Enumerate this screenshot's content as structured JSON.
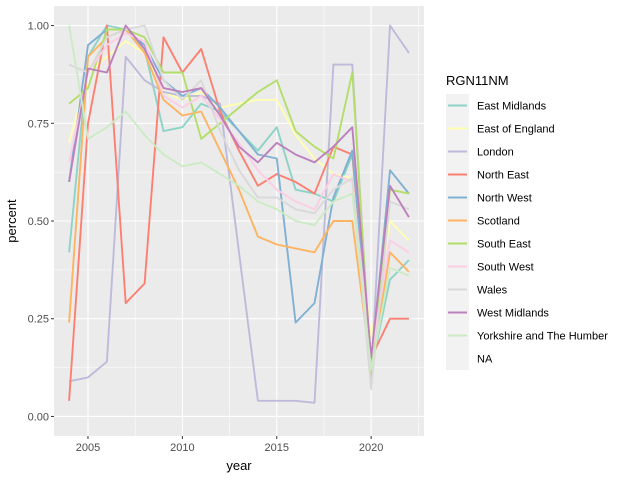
{
  "chart_data": {
    "type": "line",
    "xlabel": "year",
    "ylabel": "percent",
    "xlim": [
      2003.2,
      2022.8
    ],
    "ylim": [
      -0.05,
      1.05
    ],
    "x_ticks": [
      2005,
      2010,
      2015,
      2020
    ],
    "y_ticks": [
      0.0,
      0.25,
      0.5,
      0.75,
      1.0
    ],
    "y_tick_labels": [
      "0.00",
      "0.25",
      "0.50",
      "0.75",
      "1.00"
    ],
    "grid": true,
    "background": "#EBEBEB",
    "legend_title": "RGN11NM",
    "legend_position": "right",
    "series": [
      {
        "name": "East Midlands",
        "color": "#8DD3C7",
        "x": [
          2004,
          2005,
          2006,
          2007,
          2008,
          2009,
          2010,
          2011,
          2012,
          2013,
          2014,
          2015,
          2016,
          2017,
          2018,
          2019,
          2020,
          2021,
          2022
        ],
        "y": [
          0.42,
          0.92,
          1.0,
          0.99,
          0.94,
          0.73,
          0.74,
          0.8,
          0.78,
          0.73,
          0.68,
          0.74,
          0.58,
          0.57,
          0.55,
          0.67,
          0.12,
          0.35,
          0.4
        ]
      },
      {
        "name": "East of England",
        "color": "#FFFFB3",
        "x": [
          2004,
          2005,
          2006,
          2007,
          2008,
          2009,
          2010,
          2011,
          2012,
          2013,
          2014,
          2015,
          2016,
          2017,
          2018,
          2019,
          2020,
          2021,
          2022
        ],
        "y": [
          0.7,
          0.88,
          0.92,
          0.96,
          0.93,
          0.83,
          0.81,
          0.83,
          0.79,
          0.8,
          0.81,
          0.81,
          0.72,
          0.66,
          0.62,
          0.61,
          0.2,
          0.5,
          0.45
        ]
      },
      {
        "name": "London",
        "color": "#BEBADA",
        "x": [
          2004,
          2005,
          2006,
          2007,
          2008,
          2009,
          2010,
          2011,
          2012,
          2013,
          2014,
          2015,
          2016,
          2017,
          2018,
          2019,
          2020,
          2021,
          2022
        ],
        "y": [
          0.09,
          0.1,
          0.14,
          0.92,
          0.86,
          0.83,
          0.82,
          0.82,
          0.8,
          0.42,
          0.04,
          0.04,
          0.04,
          0.035,
          0.9,
          0.9,
          0.1,
          1.0,
          0.93
        ]
      },
      {
        "name": "North East",
        "color": "#FB8072",
        "x": [
          2004,
          2005,
          2006,
          2007,
          2008,
          2009,
          2010,
          2011,
          2012,
          2013,
          2014,
          2015,
          2016,
          2017,
          2018,
          2019,
          2020,
          2021,
          2022
        ],
        "y": [
          0.04,
          0.75,
          1.0,
          0.29,
          0.34,
          0.97,
          0.88,
          0.94,
          0.78,
          0.68,
          0.59,
          0.62,
          0.6,
          0.57,
          0.69,
          0.67,
          0.15,
          0.25,
          0.25
        ]
      },
      {
        "name": "North West",
        "color": "#80B1D3",
        "x": [
          2004,
          2005,
          2006,
          2007,
          2008,
          2009,
          2010,
          2011,
          2012,
          2013,
          2014,
          2015,
          2016,
          2017,
          2018,
          2019,
          2020,
          2021,
          2022
        ],
        "y": [
          0.6,
          0.95,
          0.99,
          0.99,
          0.95,
          0.86,
          0.82,
          0.84,
          0.79,
          0.73,
          0.67,
          0.66,
          0.24,
          0.29,
          0.56,
          0.68,
          0.13,
          0.63,
          0.57
        ]
      },
      {
        "name": "Scotland",
        "color": "#FDB462",
        "x": [
          2004,
          2005,
          2006,
          2007,
          2008,
          2009,
          2010,
          2011,
          2012,
          2013,
          2014,
          2015,
          2016,
          2017,
          2018,
          2019,
          2020,
          2021,
          2022
        ],
        "y": [
          0.24,
          0.92,
          0.97,
          0.99,
          0.93,
          0.81,
          0.77,
          0.78,
          0.68,
          0.58,
          0.46,
          0.44,
          0.43,
          0.42,
          0.5,
          0.5,
          0.12,
          0.42,
          0.37
        ]
      },
      {
        "name": "South East",
        "color": "#B3DE69",
        "x": [
          2004,
          2005,
          2006,
          2007,
          2008,
          2009,
          2010,
          2011,
          2012,
          2013,
          2014,
          2015,
          2016,
          2017,
          2018,
          2019,
          2020,
          2021,
          2022
        ],
        "y": [
          0.8,
          0.84,
          0.99,
          0.99,
          0.97,
          0.88,
          0.88,
          0.71,
          0.75,
          0.79,
          0.83,
          0.86,
          0.73,
          0.69,
          0.66,
          0.88,
          0.11,
          0.58,
          0.57
        ]
      },
      {
        "name": "South West",
        "color": "#FCCDE5",
        "x": [
          2004,
          2005,
          2006,
          2007,
          2008,
          2009,
          2010,
          2011,
          2012,
          2013,
          2014,
          2015,
          2016,
          2017,
          2018,
          2019,
          2020,
          2021,
          2022
        ],
        "y": [
          0.65,
          0.88,
          0.95,
          0.98,
          0.96,
          0.82,
          0.79,
          0.82,
          0.76,
          0.7,
          0.63,
          0.58,
          0.55,
          0.53,
          0.62,
          0.6,
          0.15,
          0.45,
          0.42
        ]
      },
      {
        "name": "Wales",
        "color": "#D9D9D9",
        "x": [
          2004,
          2005,
          2006,
          2007,
          2008,
          2009,
          2010,
          2011,
          2012,
          2013,
          2014,
          2015,
          2016,
          2017,
          2018,
          2019,
          2020,
          2021,
          2022
        ],
        "y": [
          0.9,
          0.88,
          0.97,
          0.99,
          1.0,
          0.86,
          0.81,
          0.86,
          0.73,
          0.63,
          0.56,
          0.56,
          0.53,
          0.52,
          0.58,
          0.61,
          0.07,
          0.55,
          0.53
        ]
      },
      {
        "name": "West Midlands",
        "color": "#BC80BD",
        "x": [
          2004,
          2005,
          2006,
          2007,
          2008,
          2009,
          2010,
          2011,
          2012,
          2013,
          2014,
          2015,
          2016,
          2017,
          2018,
          2019,
          2020,
          2021,
          2022
        ],
        "y": [
          0.6,
          0.89,
          0.88,
          1.0,
          0.94,
          0.84,
          0.83,
          0.84,
          0.77,
          0.69,
          0.65,
          0.7,
          0.67,
          0.65,
          0.69,
          0.74,
          0.15,
          0.59,
          0.51
        ]
      },
      {
        "name": "Yorkshire and The Humber",
        "color": "#CCEBC5",
        "x": [
          2004,
          2005,
          2006,
          2007,
          2008,
          2009,
          2010,
          2011,
          2012,
          2013,
          2014,
          2015,
          2016,
          2017,
          2018,
          2019,
          2020,
          2021,
          2022
        ],
        "y": [
          1.0,
          0.71,
          0.74,
          0.78,
          0.72,
          0.67,
          0.64,
          0.65,
          0.62,
          0.59,
          0.55,
          0.53,
          0.5,
          0.49,
          0.55,
          0.57,
          0.12,
          0.38,
          0.36
        ]
      },
      {
        "name": "NA",
        "color": "#F0F0F0",
        "x": [],
        "y": []
      }
    ]
  }
}
